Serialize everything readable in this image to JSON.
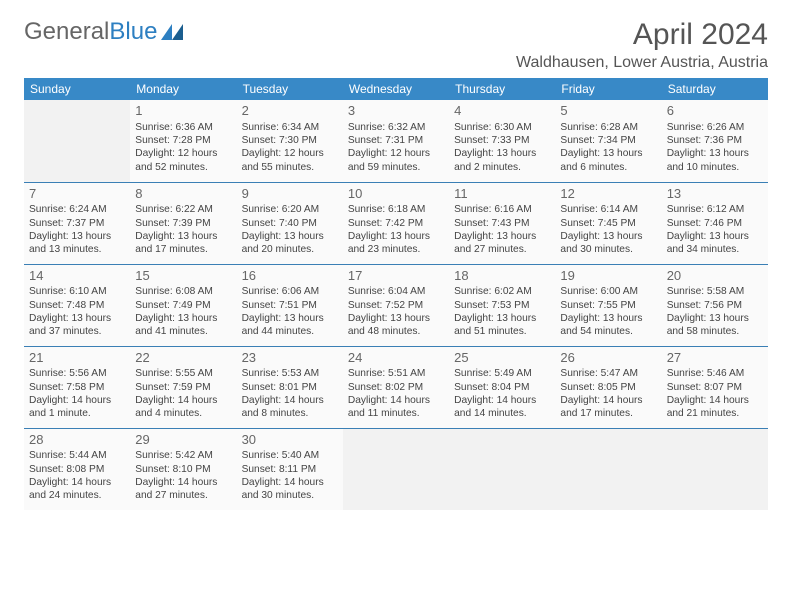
{
  "logo": {
    "word1": "General",
    "word2": "Blue"
  },
  "title": "April 2024",
  "location": "Waldhausen, Lower Austria, Austria",
  "colors": {
    "header_bg": "#3889c7",
    "header_text": "#ffffff",
    "row_border": "#3a7fb5",
    "cell_bg": "#fafafa",
    "empty_bg": "#f2f2f2",
    "text": "#444444",
    "logo_gray": "#666666",
    "logo_blue": "#2d7fc1"
  },
  "typography": {
    "title_fontsize": 30,
    "location_fontsize": 16,
    "header_fontsize": 12,
    "cell_fontsize": 10.2,
    "daynum_fontsize": 13
  },
  "weekdays": [
    "Sunday",
    "Monday",
    "Tuesday",
    "Wednesday",
    "Thursday",
    "Friday",
    "Saturday"
  ],
  "weeks": [
    [
      null,
      {
        "day": "1",
        "sunrise": "Sunrise: 6:36 AM",
        "sunset": "Sunset: 7:28 PM",
        "daylight": "Daylight: 12 hours and 52 minutes."
      },
      {
        "day": "2",
        "sunrise": "Sunrise: 6:34 AM",
        "sunset": "Sunset: 7:30 PM",
        "daylight": "Daylight: 12 hours and 55 minutes."
      },
      {
        "day": "3",
        "sunrise": "Sunrise: 6:32 AM",
        "sunset": "Sunset: 7:31 PM",
        "daylight": "Daylight: 12 hours and 59 minutes."
      },
      {
        "day": "4",
        "sunrise": "Sunrise: 6:30 AM",
        "sunset": "Sunset: 7:33 PM",
        "daylight": "Daylight: 13 hours and 2 minutes."
      },
      {
        "day": "5",
        "sunrise": "Sunrise: 6:28 AM",
        "sunset": "Sunset: 7:34 PM",
        "daylight": "Daylight: 13 hours and 6 minutes."
      },
      {
        "day": "6",
        "sunrise": "Sunrise: 6:26 AM",
        "sunset": "Sunset: 7:36 PM",
        "daylight": "Daylight: 13 hours and 10 minutes."
      }
    ],
    [
      {
        "day": "7",
        "sunrise": "Sunrise: 6:24 AM",
        "sunset": "Sunset: 7:37 PM",
        "daylight": "Daylight: 13 hours and 13 minutes."
      },
      {
        "day": "8",
        "sunrise": "Sunrise: 6:22 AM",
        "sunset": "Sunset: 7:39 PM",
        "daylight": "Daylight: 13 hours and 17 minutes."
      },
      {
        "day": "9",
        "sunrise": "Sunrise: 6:20 AM",
        "sunset": "Sunset: 7:40 PM",
        "daylight": "Daylight: 13 hours and 20 minutes."
      },
      {
        "day": "10",
        "sunrise": "Sunrise: 6:18 AM",
        "sunset": "Sunset: 7:42 PM",
        "daylight": "Daylight: 13 hours and 23 minutes."
      },
      {
        "day": "11",
        "sunrise": "Sunrise: 6:16 AM",
        "sunset": "Sunset: 7:43 PM",
        "daylight": "Daylight: 13 hours and 27 minutes."
      },
      {
        "day": "12",
        "sunrise": "Sunrise: 6:14 AM",
        "sunset": "Sunset: 7:45 PM",
        "daylight": "Daylight: 13 hours and 30 minutes."
      },
      {
        "day": "13",
        "sunrise": "Sunrise: 6:12 AM",
        "sunset": "Sunset: 7:46 PM",
        "daylight": "Daylight: 13 hours and 34 minutes."
      }
    ],
    [
      {
        "day": "14",
        "sunrise": "Sunrise: 6:10 AM",
        "sunset": "Sunset: 7:48 PM",
        "daylight": "Daylight: 13 hours and 37 minutes."
      },
      {
        "day": "15",
        "sunrise": "Sunrise: 6:08 AM",
        "sunset": "Sunset: 7:49 PM",
        "daylight": "Daylight: 13 hours and 41 minutes."
      },
      {
        "day": "16",
        "sunrise": "Sunrise: 6:06 AM",
        "sunset": "Sunset: 7:51 PM",
        "daylight": "Daylight: 13 hours and 44 minutes."
      },
      {
        "day": "17",
        "sunrise": "Sunrise: 6:04 AM",
        "sunset": "Sunset: 7:52 PM",
        "daylight": "Daylight: 13 hours and 48 minutes."
      },
      {
        "day": "18",
        "sunrise": "Sunrise: 6:02 AM",
        "sunset": "Sunset: 7:53 PM",
        "daylight": "Daylight: 13 hours and 51 minutes."
      },
      {
        "day": "19",
        "sunrise": "Sunrise: 6:00 AM",
        "sunset": "Sunset: 7:55 PM",
        "daylight": "Daylight: 13 hours and 54 minutes."
      },
      {
        "day": "20",
        "sunrise": "Sunrise: 5:58 AM",
        "sunset": "Sunset: 7:56 PM",
        "daylight": "Daylight: 13 hours and 58 minutes."
      }
    ],
    [
      {
        "day": "21",
        "sunrise": "Sunrise: 5:56 AM",
        "sunset": "Sunset: 7:58 PM",
        "daylight": "Daylight: 14 hours and 1 minute."
      },
      {
        "day": "22",
        "sunrise": "Sunrise: 5:55 AM",
        "sunset": "Sunset: 7:59 PM",
        "daylight": "Daylight: 14 hours and 4 minutes."
      },
      {
        "day": "23",
        "sunrise": "Sunrise: 5:53 AM",
        "sunset": "Sunset: 8:01 PM",
        "daylight": "Daylight: 14 hours and 8 minutes."
      },
      {
        "day": "24",
        "sunrise": "Sunrise: 5:51 AM",
        "sunset": "Sunset: 8:02 PM",
        "daylight": "Daylight: 14 hours and 11 minutes."
      },
      {
        "day": "25",
        "sunrise": "Sunrise: 5:49 AM",
        "sunset": "Sunset: 8:04 PM",
        "daylight": "Daylight: 14 hours and 14 minutes."
      },
      {
        "day": "26",
        "sunrise": "Sunrise: 5:47 AM",
        "sunset": "Sunset: 8:05 PM",
        "daylight": "Daylight: 14 hours and 17 minutes."
      },
      {
        "day": "27",
        "sunrise": "Sunrise: 5:46 AM",
        "sunset": "Sunset: 8:07 PM",
        "daylight": "Daylight: 14 hours and 21 minutes."
      }
    ],
    [
      {
        "day": "28",
        "sunrise": "Sunrise: 5:44 AM",
        "sunset": "Sunset: 8:08 PM",
        "daylight": "Daylight: 14 hours and 24 minutes."
      },
      {
        "day": "29",
        "sunrise": "Sunrise: 5:42 AM",
        "sunset": "Sunset: 8:10 PM",
        "daylight": "Daylight: 14 hours and 27 minutes."
      },
      {
        "day": "30",
        "sunrise": "Sunrise: 5:40 AM",
        "sunset": "Sunset: 8:11 PM",
        "daylight": "Daylight: 14 hours and 30 minutes."
      },
      null,
      null,
      null,
      null
    ]
  ]
}
